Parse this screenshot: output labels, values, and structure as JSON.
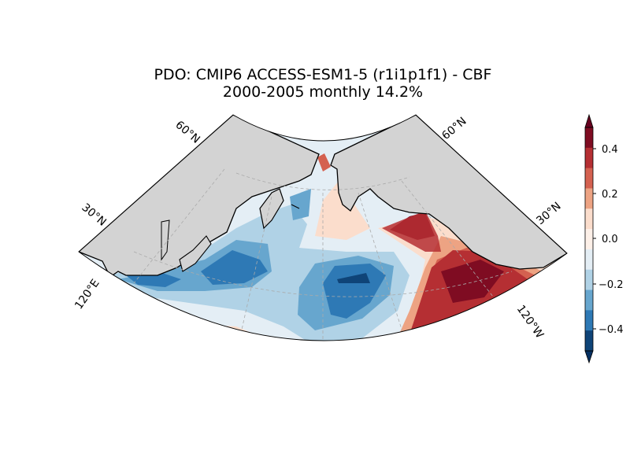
{
  "title_line1": "PDO: CMIP6 ACCESS-ESM1-5 (r1i1p1f1) - CBF",
  "title_line2": "2000-2005 monthly 14.2%",
  "graticule_labels": {
    "lat_left_60": "60°N",
    "lat_right_60": "60°N",
    "lat_left_30": "30°N",
    "lat_right_30": "30°N",
    "lon_left_120e": "120°E",
    "lon_right_120w": "120°W"
  },
  "colorbar": {
    "ticks": [
      "0.4",
      "0.2",
      "0.0",
      "−0.2",
      "−0.4"
    ],
    "levels": [
      {
        "value": 0.5,
        "color": "#7f0c22"
      },
      {
        "value": 0.4,
        "color": "#b52f33"
      },
      {
        "value": 0.3,
        "color": "#d46150"
      },
      {
        "value": 0.2,
        "color": "#eda383"
      },
      {
        "value": 0.1,
        "color": "#fbddcc"
      },
      {
        "value": 0.0,
        "color": "#fdf0e8"
      },
      {
        "value": -0.1,
        "color": "#e4eef5"
      },
      {
        "value": -0.2,
        "color": "#b0d2e6"
      },
      {
        "value": -0.3,
        "color": "#67a6ce"
      },
      {
        "value": -0.4,
        "color": "#2e79b5"
      },
      {
        "value": -0.5,
        "color": "#0f4478"
      }
    ]
  },
  "colors": {
    "land": "#d3d3d3",
    "coast": "#000000",
    "grid": "#aaaaaa"
  }
}
